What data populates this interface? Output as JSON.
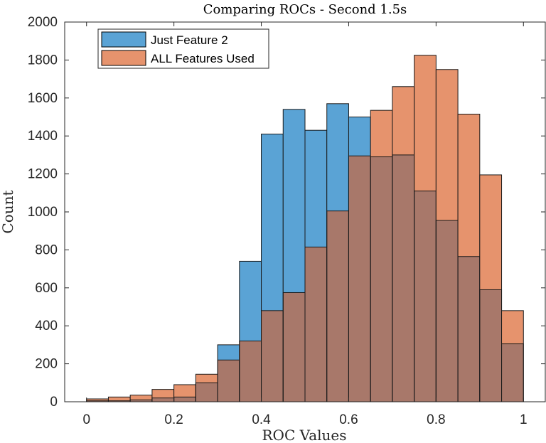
{
  "chart_data": {
    "type": "bar",
    "title": "Comparing ROCs - Second 1.5s",
    "xlabel": "ROC Values",
    "ylabel": "Count",
    "xlim": [
      -0.05,
      1.05
    ],
    "ylim": [
      0,
      2000
    ],
    "xticks": [
      "0",
      "0.2",
      "0.4",
      "0.6",
      "0.8",
      "1"
    ],
    "xtick_values": [
      0,
      0.2,
      0.4,
      0.6,
      0.8,
      1
    ],
    "yticks": [
      "0",
      "200",
      "400",
      "600",
      "800",
      "1000",
      "1200",
      "1400",
      "1600",
      "1800",
      "2000"
    ],
    "ytick_values": [
      0,
      200,
      400,
      600,
      800,
      1000,
      1200,
      1400,
      1600,
      1800,
      2000
    ],
    "bin_edges": [
      0,
      0.05,
      0.1,
      0.15,
      0.2,
      0.25,
      0.3,
      0.35,
      0.4,
      0.45,
      0.5,
      0.55,
      0.6,
      0.65,
      0.7,
      0.75,
      0.8,
      0.85,
      0.9,
      0.95,
      1.0
    ],
    "series": [
      {
        "name": "Just Feature 2",
        "color": "#5aa3d5",
        "values": [
          5,
          5,
          10,
          20,
          25,
          100,
          300,
          740,
          1410,
          1540,
          1430,
          1570,
          1500,
          1290,
          1300,
          1110,
          955,
          765,
          590,
          305
        ]
      },
      {
        "name": "ALL Features Used",
        "color": "#e6936d",
        "values": [
          15,
          25,
          35,
          65,
          90,
          145,
          220,
          320,
          480,
          575,
          815,
          1005,
          1295,
          1535,
          1660,
          1825,
          1750,
          1515,
          1195,
          480
        ]
      }
    ],
    "overlap_color": "#a8786a",
    "legend_position": "top-left",
    "grid": false
  }
}
